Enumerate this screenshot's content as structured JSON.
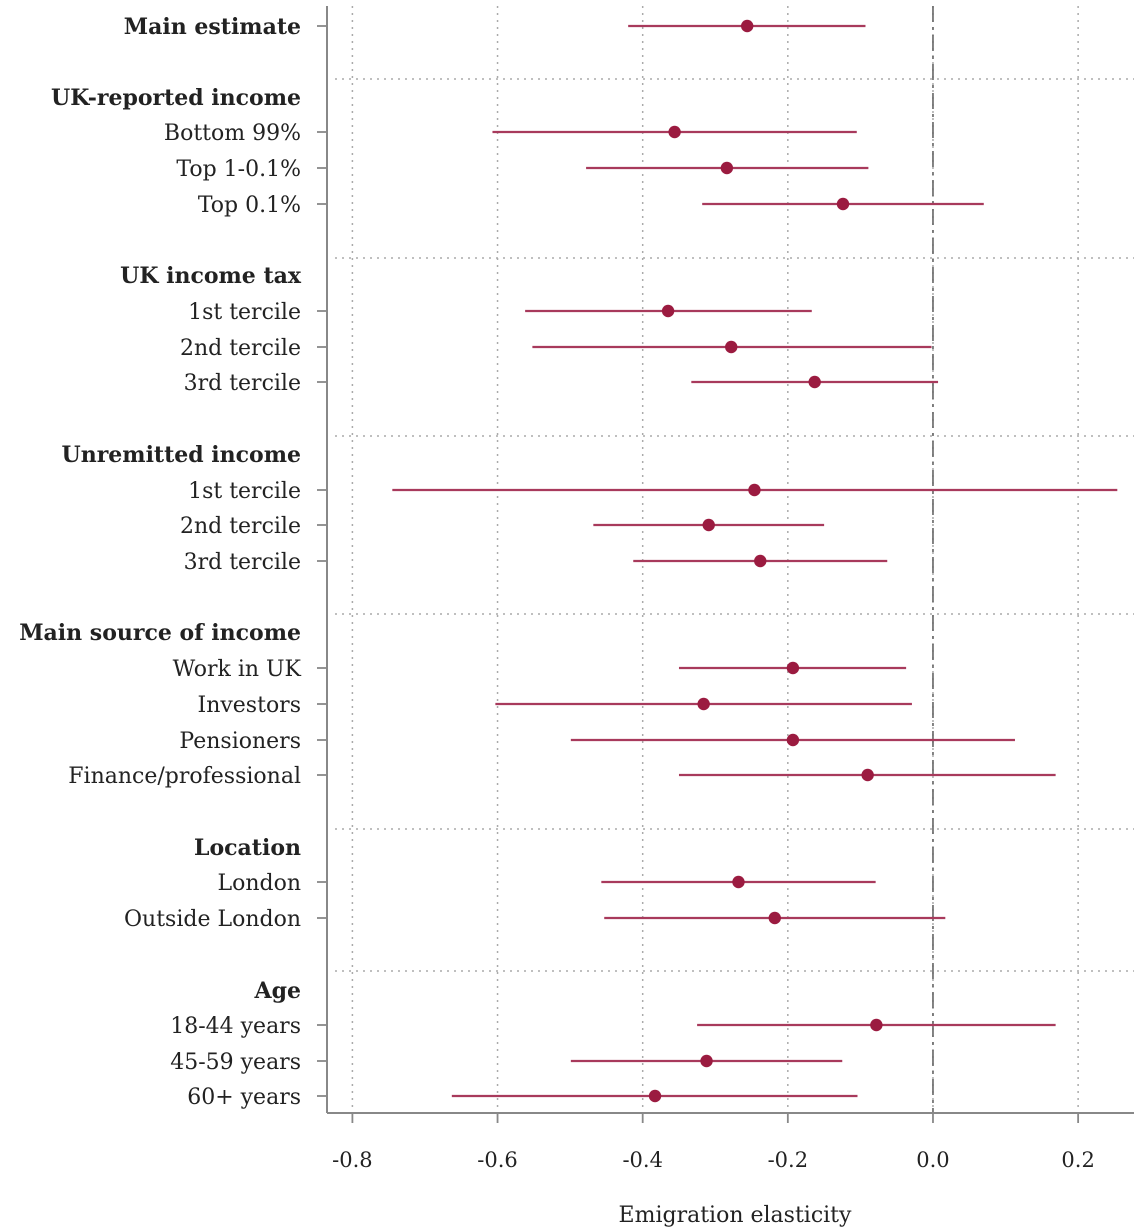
{
  "chart_data": {
    "type": "forest",
    "xlabel": "Emigration elasticity",
    "xlim": [
      -0.835,
      0.277
    ],
    "xticks": [
      -0.8,
      -0.6,
      -0.4,
      -0.2,
      0.0,
      0.2
    ],
    "xtick_labels": [
      "-0.8",
      "-0.6",
      "-0.4",
      "-0.2",
      "0.0",
      "0.2"
    ],
    "reference_line": 0.0,
    "grid": "dotted vertical gridlines; dotted horizontal separators between groups",
    "colors": {
      "estimate": "#9b1b40",
      "interval": "#a83a5c",
      "axis": "#888888",
      "reference": "#666666"
    },
    "rows": [
      {
        "label": "Main estimate",
        "header": true,
        "est": -0.256,
        "lo": -0.42,
        "hi": -0.093
      },
      {
        "label": "UK-reported income",
        "header": true
      },
      {
        "label": "Bottom 99%",
        "est": -0.356,
        "lo": -0.607,
        "hi": -0.105
      },
      {
        "label": "Top 1-0.1%",
        "est": -0.284,
        "lo": -0.478,
        "hi": -0.089
      },
      {
        "label": "Top 0.1%",
        "est": -0.124,
        "lo": -0.318,
        "hi": 0.07
      },
      {
        "label": "UK income tax",
        "header": true
      },
      {
        "label": "1st tercile",
        "est": -0.365,
        "lo": -0.562,
        "hi": -0.167
      },
      {
        "label": "2nd tercile",
        "est": -0.278,
        "lo": -0.552,
        "hi": -0.002
      },
      {
        "label": "3rd tercile",
        "est": -0.163,
        "lo": -0.333,
        "hi": 0.007
      },
      {
        "label": "Unremitted income",
        "header": true
      },
      {
        "label": "1st tercile",
        "est": -0.246,
        "lo": -0.745,
        "hi": 0.254
      },
      {
        "label": "2nd tercile",
        "est": -0.309,
        "lo": -0.468,
        "hi": -0.15
      },
      {
        "label": "3rd tercile",
        "est": -0.238,
        "lo": -0.413,
        "hi": -0.063
      },
      {
        "label": "Main source of income",
        "header": true
      },
      {
        "label": "Work in UK",
        "est": -0.193,
        "lo": -0.35,
        "hi": -0.037
      },
      {
        "label": "Investors",
        "est": -0.316,
        "lo": -0.603,
        "hi": -0.029
      },
      {
        "label": "Pensioners",
        "est": -0.193,
        "lo": -0.499,
        "hi": 0.113
      },
      {
        "label": "Finance/professional",
        "est": -0.09,
        "lo": -0.35,
        "hi": 0.169
      },
      {
        "label": "Location",
        "header": true
      },
      {
        "label": "London",
        "est": -0.268,
        "lo": -0.457,
        "hi": -0.079
      },
      {
        "label": "Outside London",
        "est": -0.218,
        "lo": -0.453,
        "hi": 0.017
      },
      {
        "label": "Age",
        "header": true
      },
      {
        "label": "18-44 years",
        "est": -0.078,
        "lo": -0.325,
        "hi": 0.169
      },
      {
        "label": "45-59 years",
        "est": -0.312,
        "lo": -0.499,
        "hi": -0.125
      },
      {
        "label": "60+ years",
        "est": -0.383,
        "lo": -0.663,
        "hi": -0.104
      }
    ]
  }
}
